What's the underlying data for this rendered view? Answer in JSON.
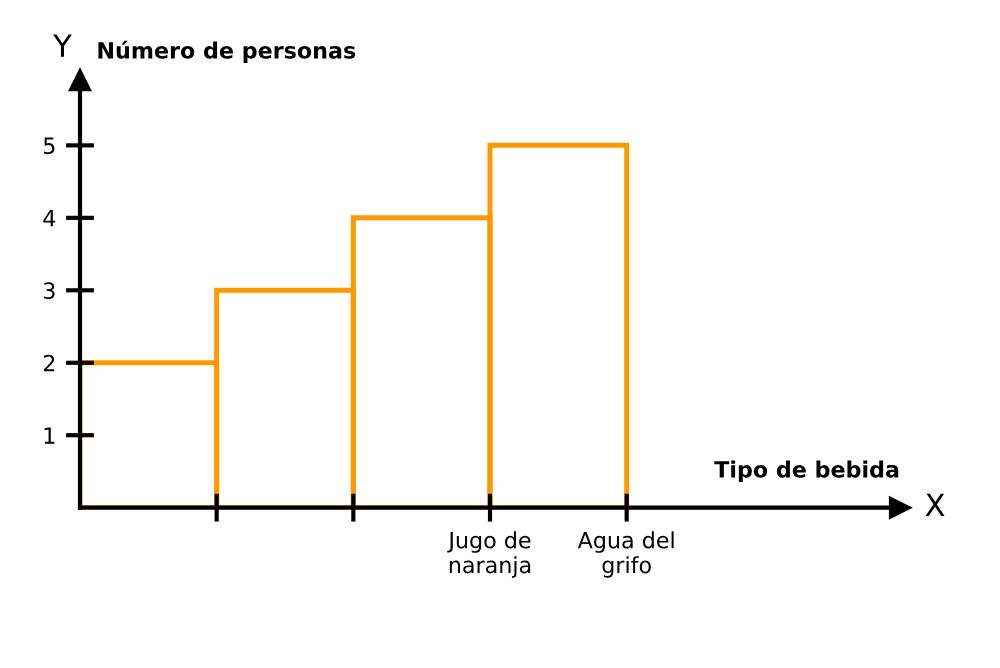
{
  "chart_data": {
    "type": "bar",
    "xlabel": "Tipo de bebida",
    "ylabel": "Número de personas",
    "categories": [
      null,
      null,
      "Jugo de\nnaranja",
      "Agua del\ngrifo"
    ],
    "values": [
      2,
      3,
      4,
      5
    ],
    "color": "#ff9900",
    "ylim": [
      0,
      5.9
    ],
    "yticks": [
      1,
      2,
      3,
      4,
      5
    ],
    "grid": false,
    "annotations": [
      "Y",
      "X"
    ]
  }
}
